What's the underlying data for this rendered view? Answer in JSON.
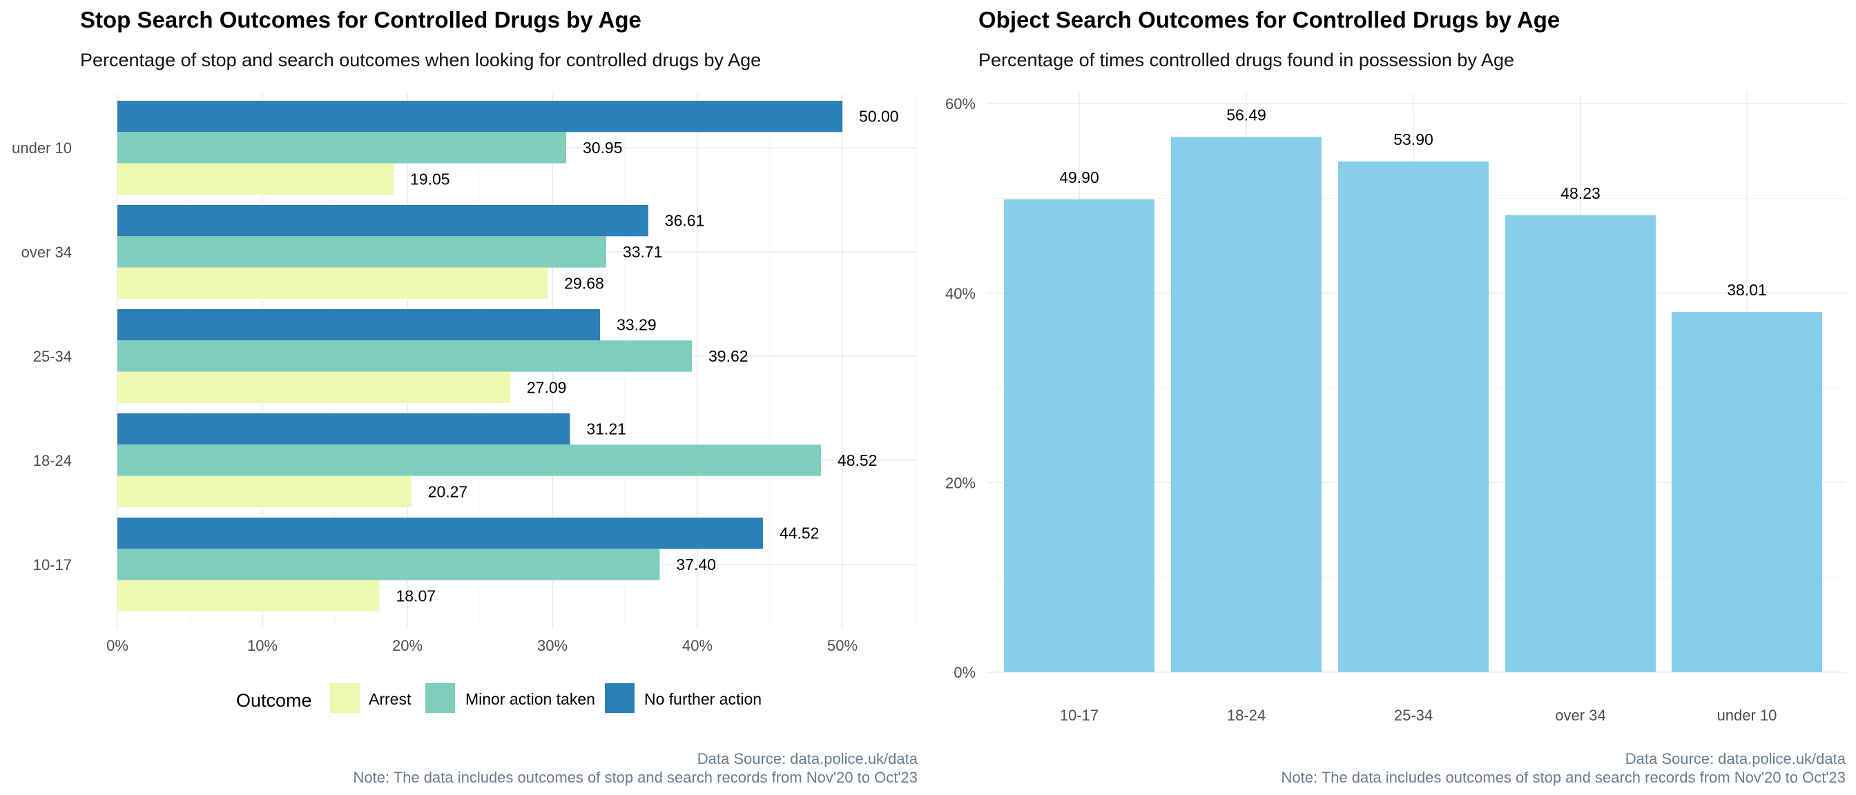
{
  "chart_data": [
    {
      "type": "bar",
      "orientation": "horizontal",
      "title": "Stop Search Outcomes for Controlled Drugs by Age",
      "subtitle": "Percentage of stop and search outcomes when looking for controlled drugs by Age",
      "categories": [
        "10-17",
        "18-24",
        "25-34",
        "over 34",
        "under 10"
      ],
      "series": [
        {
          "name": "Arrest",
          "color": "#edf8b1",
          "values": [
            18.07,
            20.27,
            27.09,
            29.68,
            19.05
          ],
          "labels": [
            "18.07",
            "20.27",
            "27.09",
            "29.68",
            "19.05"
          ]
        },
        {
          "name": "Minor action taken",
          "color": "#7fcdbb",
          "values": [
            37.4,
            48.52,
            39.62,
            33.71,
            30.95
          ],
          "labels": [
            "37.40",
            "48.52",
            "39.62",
            "33.71",
            "30.95"
          ]
        },
        {
          "name": "No further action",
          "color": "#2c7fb8",
          "values": [
            44.52,
            31.21,
            33.29,
            36.61,
            50.0
          ],
          "labels": [
            "44.52",
            "31.21",
            "33.29",
            "36.61",
            "50.00"
          ]
        }
      ],
      "xlim": [
        0,
        55
      ],
      "ticks": [
        0,
        10,
        20,
        30,
        40,
        50
      ],
      "tick_labels": [
        "0%",
        "10%",
        "20%",
        "30%",
        "40%",
        "50%"
      ],
      "grid": true,
      "legend": {
        "title": "Outcome",
        "position": "bottom"
      },
      "caption": [
        "Data Source: data.police.uk/data",
        "Note: The data includes outcomes of stop and search records from Nov'20 to Oct'23"
      ]
    },
    {
      "type": "bar",
      "orientation": "vertical",
      "title": "Object Search Outcomes for Controlled Drugs by Age",
      "subtitle": "Percentage of times controlled drugs found in possession by Age",
      "categories": [
        "10-17",
        "18-24",
        "25-34",
        "over 34",
        "under 10"
      ],
      "values": [
        49.9,
        56.49,
        53.9,
        48.23,
        38.01
      ],
      "labels": [
        "49.90",
        "56.49",
        "53.90",
        "48.23",
        "38.01"
      ],
      "color": "#87ceeb",
      "ylim": [
        0,
        62
      ],
      "ticks": [
        0,
        20,
        40,
        60
      ],
      "tick_labels": [
        "0%",
        "20%",
        "40%",
        "60%"
      ],
      "grid": true,
      "caption": [
        "Data Source: data.police.uk/data",
        "Note: The data includes outcomes of stop and search records from Nov'20 to Oct'23"
      ]
    }
  ]
}
